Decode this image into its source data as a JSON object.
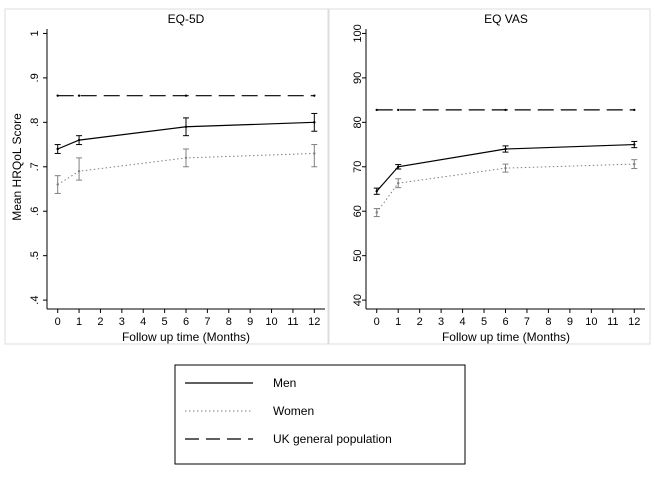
{
  "chart_data": [
    {
      "type": "line",
      "title": "EQ-5D",
      "xlabel": "Follow up time (Months)",
      "ylabel": "Mean HRQoL Score",
      "xlim": [
        -0.5,
        12.5
      ],
      "ylim": [
        0.38,
        1.01
      ],
      "x_ticks": [
        0,
        1,
        2,
        3,
        4,
        5,
        6,
        7,
        8,
        9,
        10,
        11,
        12
      ],
      "y_ticks": [
        0.4,
        0.5,
        0.6,
        0.7,
        0.8,
        0.9,
        1.0
      ],
      "y_tick_labels": [
        ".4",
        ".5",
        ".6",
        ".7",
        ".8",
        ".9",
        "1"
      ],
      "grid": false,
      "series": [
        {
          "name": "Men",
          "style": "solid",
          "color": "#000000",
          "x": [
            0,
            1,
            6,
            12
          ],
          "y": [
            0.74,
            0.76,
            0.79,
            0.8
          ],
          "ci_low": [
            0.73,
            0.75,
            0.77,
            0.78
          ],
          "ci_high": [
            0.75,
            0.77,
            0.81,
            0.82
          ]
        },
        {
          "name": "Women",
          "style": "dotted",
          "color": "#808080",
          "x": [
            0,
            1,
            6,
            12
          ],
          "y": [
            0.66,
            0.69,
            0.72,
            0.73
          ],
          "ci_low": [
            0.64,
            0.67,
            0.7,
            0.7
          ],
          "ci_high": [
            0.68,
            0.72,
            0.74,
            0.75
          ]
        },
        {
          "name": "UK general population",
          "style": "dashed",
          "color": "#000000",
          "x": [
            0,
            1,
            6,
            12
          ],
          "y": [
            0.86,
            0.86,
            0.86,
            0.86
          ]
        }
      ]
    },
    {
      "type": "line",
      "title": "EQ VAS",
      "xlabel": "Follow up time (Months)",
      "ylabel": "",
      "xlim": [
        -0.5,
        12.5
      ],
      "ylim": [
        38,
        101
      ],
      "x_ticks": [
        0,
        1,
        2,
        3,
        4,
        5,
        6,
        7,
        8,
        9,
        10,
        11,
        12
      ],
      "y_ticks": [
        40,
        50,
        60,
        70,
        80,
        90,
        100
      ],
      "y_tick_labels": [
        "40",
        "50",
        "60",
        "70",
        "80",
        "90",
        "100"
      ],
      "grid": false,
      "series": [
        {
          "name": "Men",
          "style": "solid",
          "color": "#000000",
          "x": [
            0,
            1,
            6,
            12
          ],
          "y": [
            64.5,
            70.0,
            74.0,
            75.0
          ],
          "ci_low": [
            63.8,
            69.5,
            73.3,
            74.3
          ],
          "ci_high": [
            65.2,
            70.5,
            74.7,
            75.7
          ]
        },
        {
          "name": "Women",
          "style": "dotted",
          "color": "#808080",
          "x": [
            0,
            1,
            6,
            12
          ],
          "y": [
            59.7,
            66.3,
            69.7,
            70.6
          ],
          "ci_low": [
            58.8,
            65.3,
            68.8,
            69.6
          ],
          "ci_high": [
            60.6,
            67.3,
            70.6,
            71.6
          ]
        },
        {
          "name": "UK general population",
          "style": "dashed",
          "color": "#000000",
          "x": [
            0,
            1,
            6,
            12
          ],
          "y": [
            82.8,
            82.8,
            82.8,
            82.8
          ]
        }
      ]
    }
  ],
  "legend": {
    "placement": "bottom-center",
    "entries": [
      {
        "label": "Men",
        "style": "solid",
        "color": "#000000"
      },
      {
        "label": "Women",
        "style": "dotted",
        "color": "#808080"
      },
      {
        "label": "UK general population",
        "style": "dashed",
        "color": "#000000"
      }
    ]
  }
}
